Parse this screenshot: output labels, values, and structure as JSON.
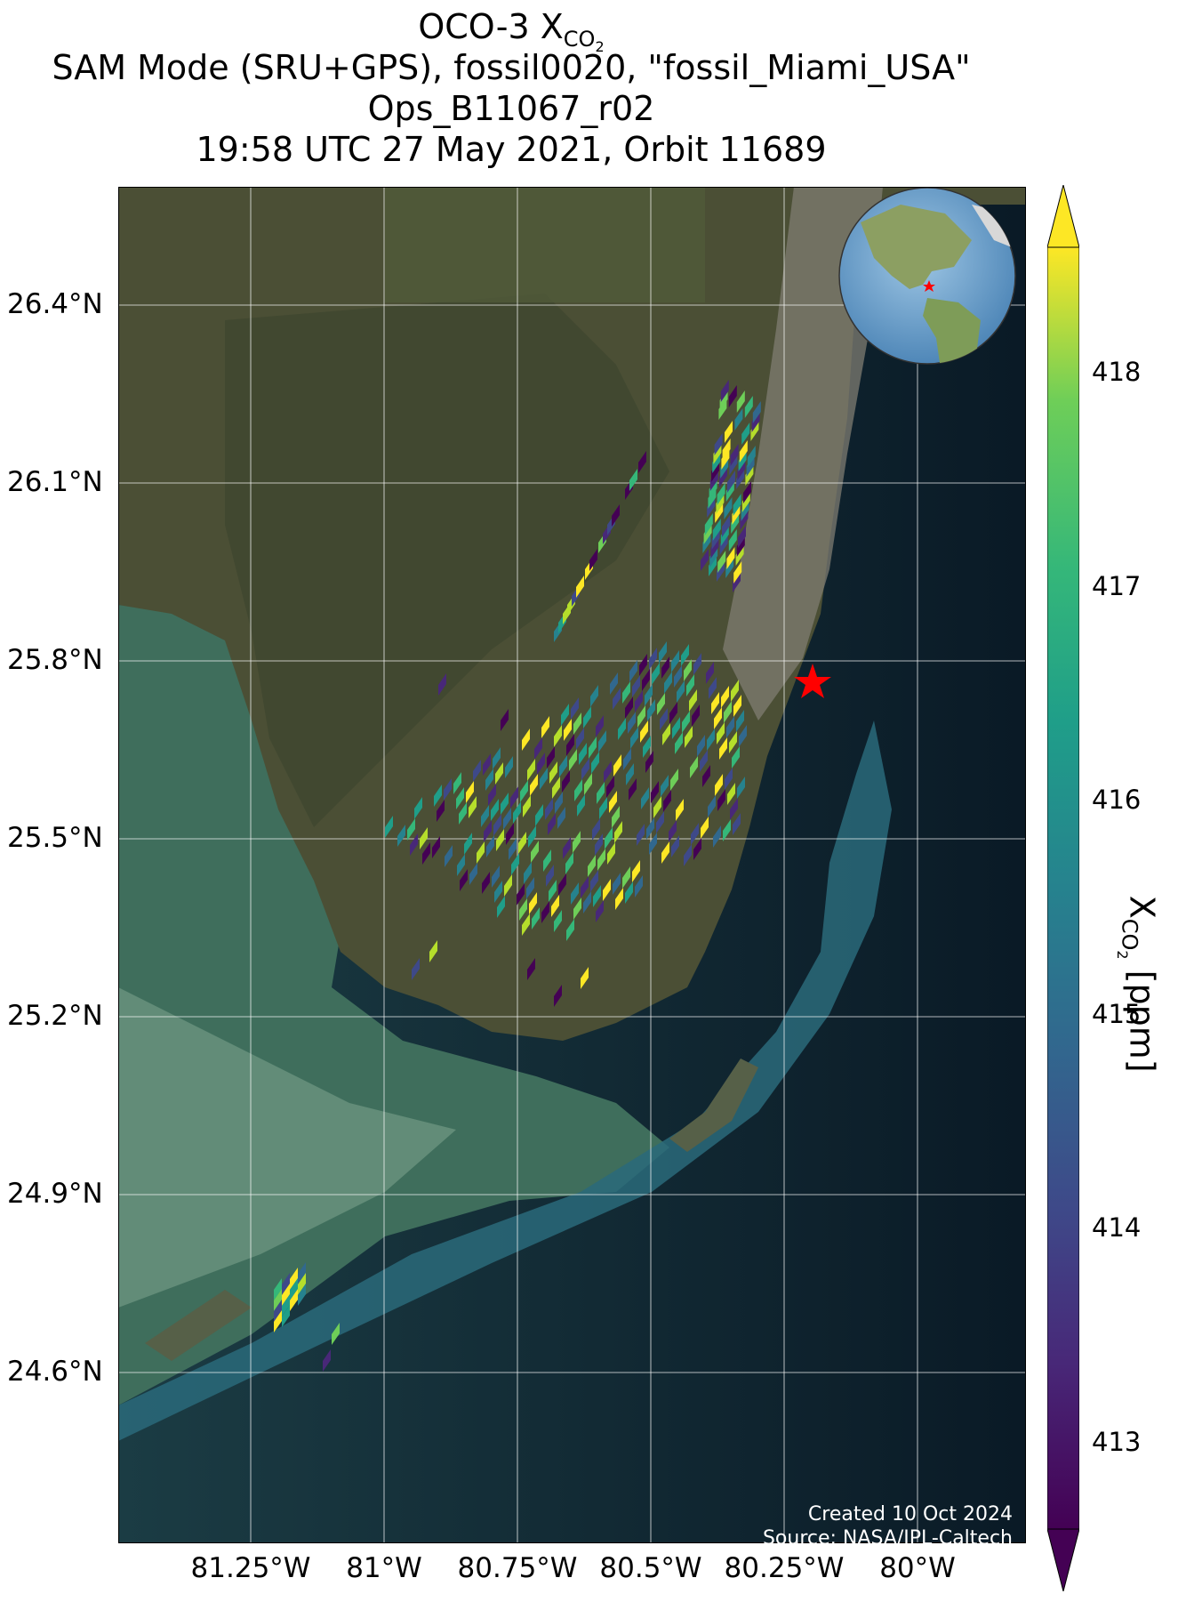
{
  "title": {
    "line1_prefix": "OCO-3 X",
    "line1_sub": "CO",
    "line1_subsub": "2",
    "line2": "SAM Mode (SRU+GPS), fossil0020, \"fossil_Miami_USA\"",
    "line3": "Ops_B11067_r02",
    "line4": "19:58 UTC 27 May 2021, Orbit 11689"
  },
  "lat_ticks": [
    "26.4°N",
    "26.1°N",
    "25.8°N",
    "25.5°N",
    "25.2°N",
    "24.9°N",
    "24.6°N"
  ],
  "lon_ticks": [
    "81.25°W",
    "81°W",
    "80.75°W",
    "80.5°W",
    "80.25°W",
    "80°W"
  ],
  "colorbar": {
    "label_prefix": "X",
    "label_sub": "CO",
    "label_subsub": "2",
    "label_suffix": " [ppm]",
    "ticks": [
      "418",
      "417",
      "416",
      "415",
      "414",
      "413"
    ],
    "range": [
      412.8,
      418.6
    ],
    "colormap": "viridis",
    "extend": "both"
  },
  "credit": {
    "line1": "Created 10 Oct 2024",
    "line2": "Source: NASA/JPL-Caltech"
  },
  "colors": {
    "ocean": "#0d1f2b",
    "land": "#4a4e35",
    "shallow_water": "#3d7a6a",
    "target_marker": "#ff0000",
    "globe_ocean": "#6fa5d0",
    "globe_land": "#8aa060"
  },
  "target": {
    "name": "fossil_Miami_USA",
    "lon": -80.2,
    "lat": 25.78
  }
}
